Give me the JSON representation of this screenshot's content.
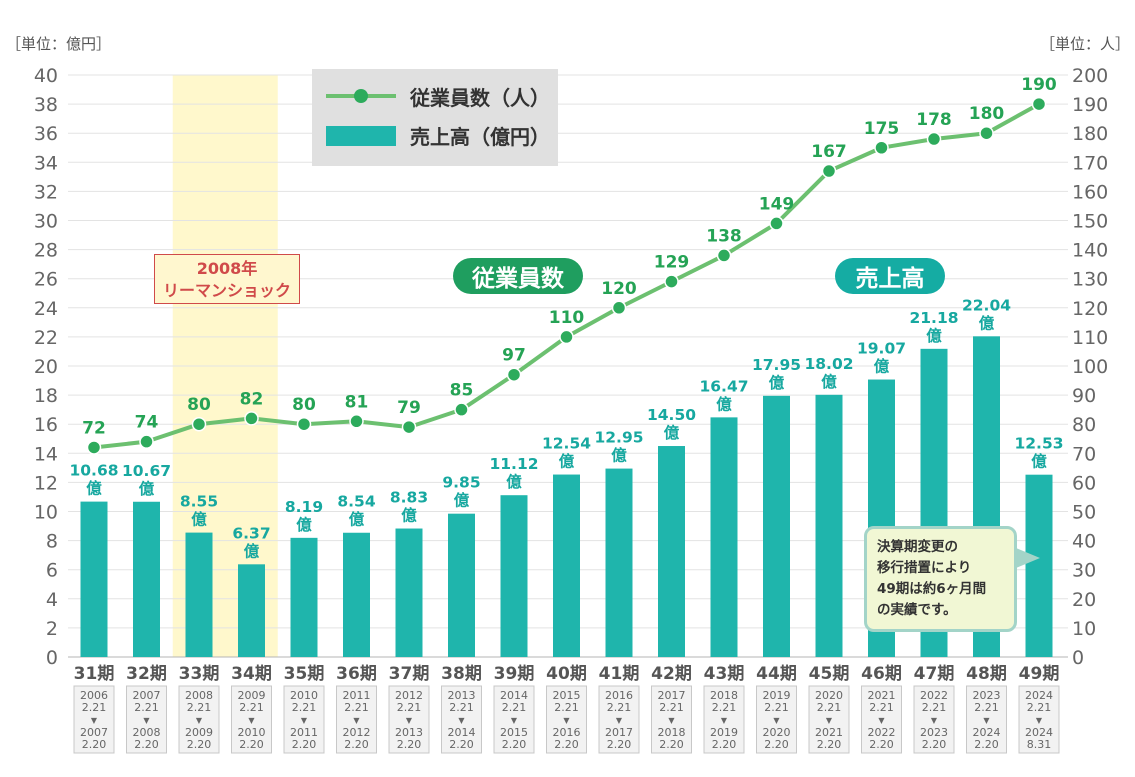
{
  "chart_data": {
    "type": "bar+line",
    "left_unit": "［単位：億円］",
    "right_unit": "［単位：人］",
    "left_ylim": [
      0,
      40
    ],
    "left_ticks": [
      "0",
      "2",
      "4",
      "6",
      "8",
      "10",
      "12",
      "14",
      "16",
      "18",
      "20",
      "22",
      "24",
      "26",
      "28",
      "30",
      "32",
      "34",
      "36",
      "38",
      "40"
    ],
    "right_ylim": [
      0,
      200
    ],
    "right_ticks": [
      "0",
      "10",
      "20",
      "30",
      "40",
      "50",
      "60",
      "70",
      "80",
      "90",
      "100",
      "110",
      "120",
      "130",
      "140",
      "150",
      "160",
      "170",
      "180",
      "190",
      "200"
    ],
    "categories": [
      "31期",
      "32期",
      "33期",
      "34期",
      "35期",
      "36期",
      "37期",
      "38期",
      "39期",
      "40期",
      "41期",
      "42期",
      "43期",
      "44期",
      "45期",
      "46期",
      "47期",
      "48期",
      "49期"
    ],
    "periods": [
      [
        "2006",
        "2.21",
        "2007",
        "2.20"
      ],
      [
        "2007",
        "2.21",
        "2008",
        "2.20"
      ],
      [
        "2008",
        "2.21",
        "2009",
        "2.20"
      ],
      [
        "2009",
        "2.21",
        "2010",
        "2.20"
      ],
      [
        "2010",
        "2.21",
        "2011",
        "2.20"
      ],
      [
        "2011",
        "2.21",
        "2012",
        "2.20"
      ],
      [
        "2012",
        "2.21",
        "2013",
        "2.20"
      ],
      [
        "2013",
        "2.21",
        "2014",
        "2.20"
      ],
      [
        "2014",
        "2.21",
        "2015",
        "2.20"
      ],
      [
        "2015",
        "2.21",
        "2016",
        "2.20"
      ],
      [
        "2016",
        "2.21",
        "2017",
        "2.20"
      ],
      [
        "2017",
        "2.21",
        "2018",
        "2.20"
      ],
      [
        "2018",
        "2.21",
        "2019",
        "2.20"
      ],
      [
        "2019",
        "2.21",
        "2020",
        "2.20"
      ],
      [
        "2020",
        "2.21",
        "2021",
        "2.20"
      ],
      [
        "2021",
        "2.21",
        "2022",
        "2.20"
      ],
      [
        "2022",
        "2.21",
        "2023",
        "2.20"
      ],
      [
        "2023",
        "2.21",
        "2024",
        "2.20"
      ],
      [
        "2024",
        "2.21",
        "2024",
        "8.31"
      ]
    ],
    "period_arrow": "▼",
    "series": [
      {
        "name": "売上高（億円）",
        "kind": "bar",
        "axis": "left",
        "color": "#1fb5ac",
        "values": [
          10.68,
          10.67,
          8.55,
          6.37,
          8.19,
          8.54,
          8.83,
          9.85,
          11.12,
          12.54,
          12.95,
          14.5,
          16.47,
          17.95,
          18.02,
          19.07,
          21.18,
          22.04,
          12.53
        ],
        "labels": [
          "10.68",
          "10.67",
          "8.55",
          "6.37",
          "8.19",
          "8.54",
          "8.83",
          "9.85",
          "11.12",
          "12.54",
          "12.95",
          "14.50",
          "16.47",
          "17.95",
          "18.02",
          "19.07",
          "21.18",
          "22.04",
          "12.53"
        ],
        "label_suffix": "億",
        "label_color": "#17a8a0"
      },
      {
        "name": "従業員数（人）",
        "kind": "line",
        "axis": "right",
        "color": "#6cc070",
        "marker_color": "#2dab5c",
        "values": [
          72,
          74,
          80,
          82,
          80,
          81,
          79,
          85,
          97,
          110,
          120,
          129,
          138,
          149,
          167,
          175,
          178,
          180,
          190
        ],
        "labels": [
          "72",
          "74",
          "80",
          "82",
          "80",
          "81",
          "79",
          "85",
          "97",
          "110",
          "120",
          "129",
          "138",
          "149",
          "167",
          "175",
          "178",
          "180",
          "190"
        ],
        "label_color": "#25a355"
      }
    ],
    "highlight": {
      "categories": [
        "33期",
        "34期"
      ],
      "color": "#fff8cc"
    },
    "grid": "horizontal"
  },
  "legend": {
    "employees": "従業員数（人）",
    "sales": "売上高（億円）"
  },
  "pills": {
    "employees": "従業員数",
    "sales": "売上高"
  },
  "event": {
    "line1": "2008年",
    "line2": "リーマンショック",
    "color": "#d04a4a"
  },
  "note": {
    "line1": "決算期変更の",
    "line2": "移行措置により",
    "line3": "49期は約6ヶ月間",
    "line4": "の実績です。"
  }
}
